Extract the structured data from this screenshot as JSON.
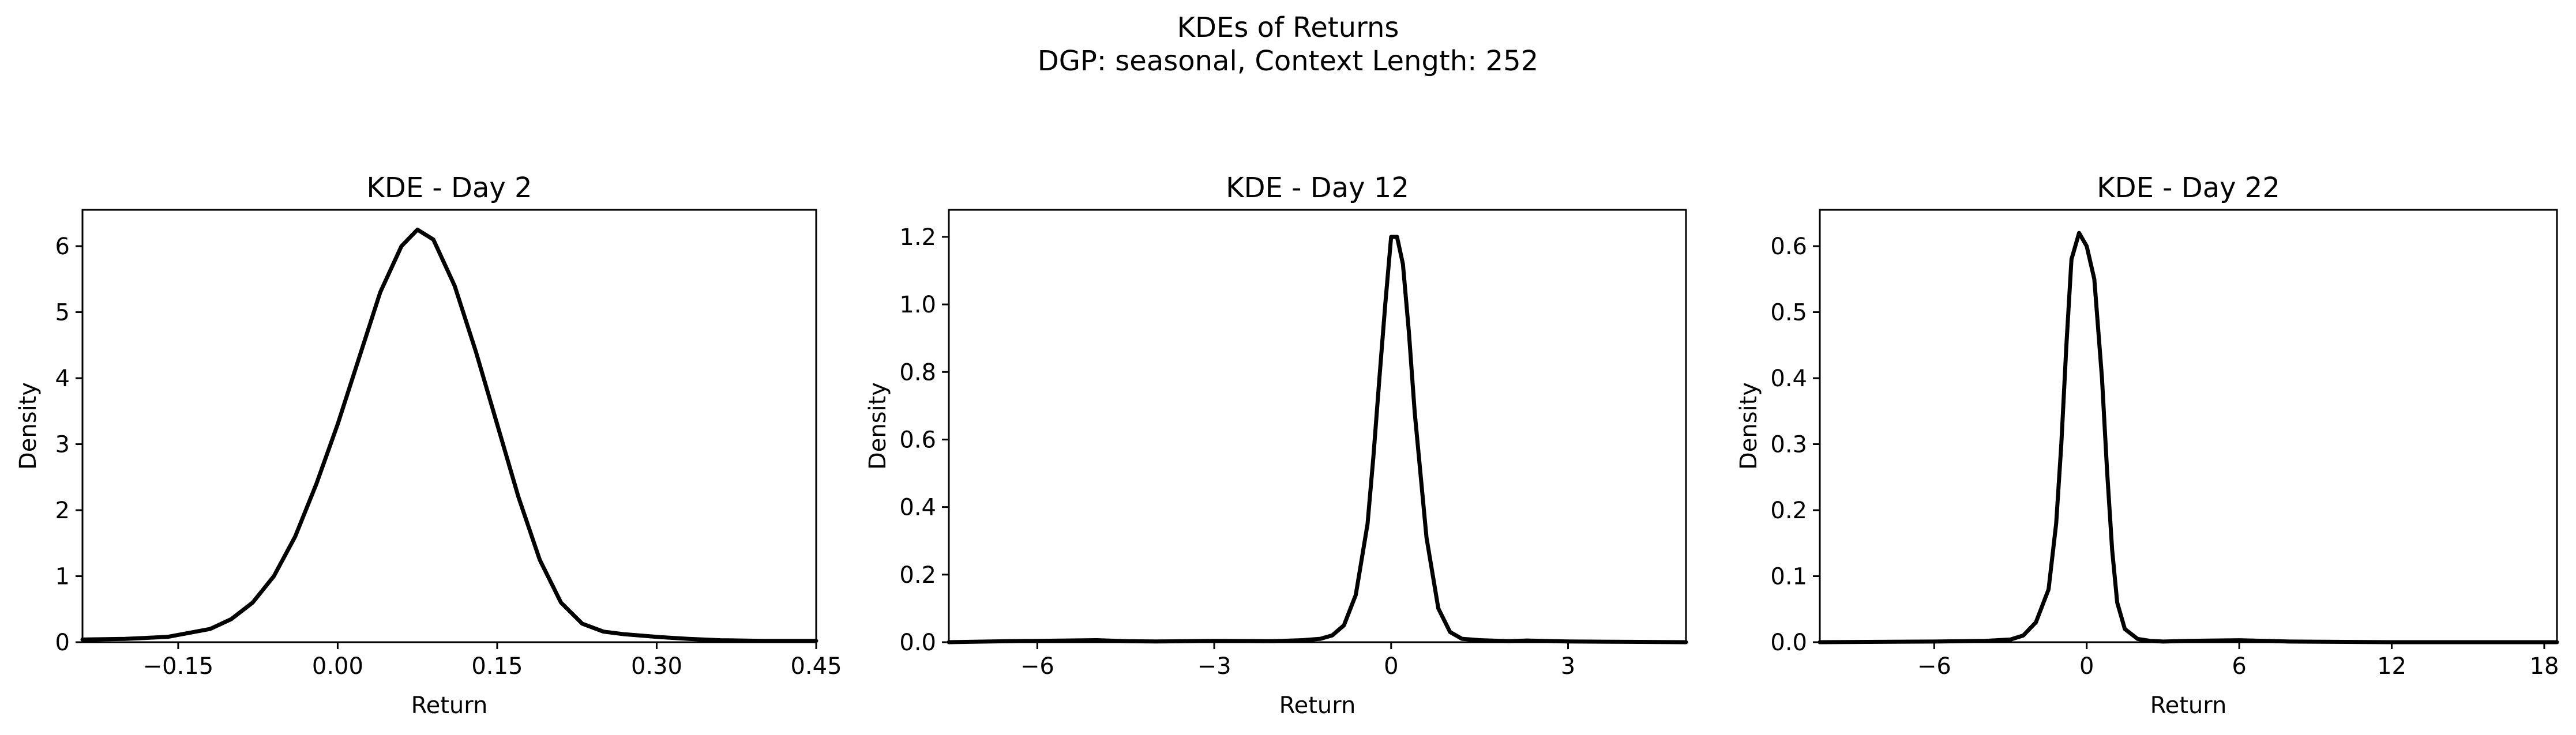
{
  "figure": {
    "title_line1": "KDEs of Returns",
    "title_line2": "DGP: seasonal, Context Length: 252"
  },
  "chart_data": [
    {
      "type": "line",
      "title": "KDE - Day 2",
      "xlabel": "Return",
      "ylabel": "Density",
      "xlim": [
        -0.24,
        0.45
      ],
      "ylim": [
        0,
        6.55
      ],
      "xticks": [
        -0.15,
        0.0,
        0.15,
        0.3,
        0.45
      ],
      "xtick_labels": [
        "−0.15",
        "0.00",
        "0.15",
        "0.30",
        "0.45"
      ],
      "yticks": [
        0,
        1,
        2,
        3,
        4,
        5,
        6
      ],
      "ytick_labels": [
        "0",
        "1",
        "2",
        "3",
        "4",
        "5",
        "6"
      ],
      "grid": false,
      "series": [
        {
          "color": "#000000",
          "x": [
            -0.24,
            -0.2,
            -0.16,
            -0.12,
            -0.1,
            -0.08,
            -0.06,
            -0.04,
            -0.02,
            0.0,
            0.02,
            0.04,
            0.06,
            0.075,
            0.09,
            0.11,
            0.13,
            0.15,
            0.17,
            0.19,
            0.21,
            0.23,
            0.25,
            0.27,
            0.3,
            0.33,
            0.36,
            0.4,
            0.45
          ],
          "y": [
            0.04,
            0.05,
            0.08,
            0.2,
            0.35,
            0.6,
            1.0,
            1.6,
            2.4,
            3.3,
            4.3,
            5.3,
            6.0,
            6.25,
            6.1,
            5.4,
            4.4,
            3.3,
            2.2,
            1.25,
            0.6,
            0.28,
            0.16,
            0.12,
            0.08,
            0.05,
            0.03,
            0.02,
            0.02
          ]
        }
      ]
    },
    {
      "type": "line",
      "title": "KDE - Day 12",
      "xlabel": "Return",
      "ylabel": "Density",
      "xlim": [
        -7.5,
        5.0
      ],
      "ylim": [
        0,
        1.28
      ],
      "xticks": [
        -6,
        -3,
        0,
        3
      ],
      "xtick_labels": [
        "−6",
        "−3",
        "0",
        "3"
      ],
      "yticks": [
        0.0,
        0.2,
        0.4,
        0.6,
        0.8,
        1.0,
        1.2
      ],
      "ytick_labels": [
        "0.0",
        "0.2",
        "0.4",
        "0.6",
        "0.8",
        "1.0",
        "1.2"
      ],
      "grid": false,
      "series": [
        {
          "color": "#000000",
          "x": [
            -7.5,
            -6.5,
            -6.0,
            -5.0,
            -4.5,
            -4.0,
            -3.0,
            -2.0,
            -1.5,
            -1.2,
            -1.0,
            -0.8,
            -0.6,
            -0.4,
            -0.3,
            -0.2,
            -0.1,
            0.0,
            0.1,
            0.2,
            0.3,
            0.4,
            0.6,
            0.8,
            1.0,
            1.2,
            1.5,
            2.0,
            2.3,
            3.0,
            4.0,
            5.0
          ],
          "y": [
            0.0,
            0.003,
            0.004,
            0.006,
            0.003,
            0.002,
            0.004,
            0.003,
            0.006,
            0.01,
            0.02,
            0.05,
            0.14,
            0.35,
            0.55,
            0.78,
            1.0,
            1.2,
            1.2,
            1.12,
            0.92,
            0.68,
            0.31,
            0.1,
            0.03,
            0.01,
            0.006,
            0.003,
            0.005,
            0.002,
            0.001,
            0.0
          ]
        }
      ]
    },
    {
      "type": "line",
      "title": "KDE - Day 22",
      "xlabel": "Return",
      "ylabel": "Density",
      "xlim": [
        -10.5,
        18.5
      ],
      "ylim": [
        0,
        0.655
      ],
      "xticks": [
        -6,
        0,
        6,
        12,
        18
      ],
      "xtick_labels": [
        "−6",
        "0",
        "6",
        "12",
        "18"
      ],
      "yticks": [
        0.0,
        0.1,
        0.2,
        0.3,
        0.4,
        0.5,
        0.6
      ],
      "ytick_labels": [
        "0.0",
        "0.1",
        "0.2",
        "0.3",
        "0.4",
        "0.5",
        "0.6"
      ],
      "grid": false,
      "series": [
        {
          "color": "#000000",
          "x": [
            -10.5,
            -6.0,
            -4.0,
            -3.0,
            -2.5,
            -2.0,
            -1.5,
            -1.2,
            -1.0,
            -0.8,
            -0.6,
            -0.3,
            0.0,
            0.3,
            0.6,
            0.8,
            1.0,
            1.2,
            1.5,
            2.0,
            2.5,
            3.0,
            4.0,
            6.0,
            8.0,
            12.0,
            18.5
          ],
          "y": [
            0.0,
            0.001,
            0.002,
            0.004,
            0.01,
            0.03,
            0.08,
            0.18,
            0.3,
            0.45,
            0.58,
            0.62,
            0.6,
            0.55,
            0.4,
            0.26,
            0.14,
            0.06,
            0.02,
            0.005,
            0.002,
            0.001,
            0.002,
            0.003,
            0.001,
            0.0,
            0.0
          ]
        }
      ]
    }
  ]
}
